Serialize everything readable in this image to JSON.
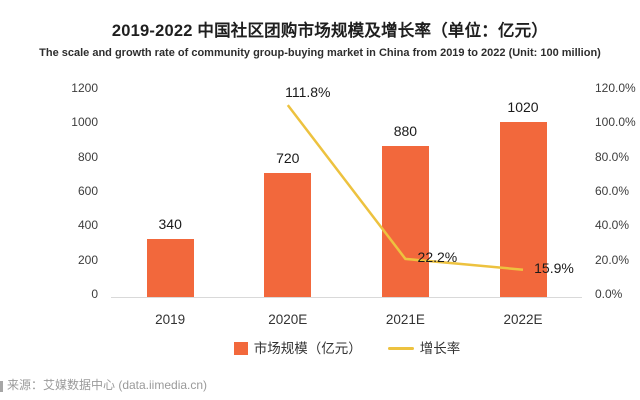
{
  "header": {
    "title": "2019-2022 中国社区团购市场规模及增长率（单位：亿元）",
    "subtitle": "The scale and growth rate of community group-buying market in China from 2019 to 2022 (Unit: 100 million)"
  },
  "legend": {
    "bar_label": "市场规模（亿元）",
    "line_label": "增长率"
  },
  "footer": {
    "source": "来源：艾媒数据中心 (data.iimedia.cn)"
  },
  "chart_data": {
    "type": "combo_bar_line",
    "title": "2019-2022 中国社区团购市场规模及增长率（单位：亿元）",
    "subtitle": "The scale and growth rate of community group-buying market in China from 2019 to 2022 (Unit: 100 million)",
    "categories": [
      "2019",
      "2020E",
      "2021E",
      "2022E"
    ],
    "series": [
      {
        "name": "市场规模（亿元）",
        "type": "bar",
        "axis": "left",
        "color": "#F2683C",
        "values": [
          340,
          720,
          880,
          1020
        ],
        "labels": [
          "340",
          "720",
          "880",
          "1020"
        ]
      },
      {
        "name": "增长率",
        "type": "line",
        "axis": "right",
        "color": "#EDC23F",
        "values": [
          null,
          111.8,
          22.2,
          15.9
        ],
        "labels": [
          null,
          "111.8%",
          "22.2%",
          "15.9%"
        ]
      }
    ],
    "left_axis": {
      "min": 0,
      "max": 1200,
      "ticks": [
        1200,
        1000,
        800,
        600,
        400,
        200,
        0
      ],
      "tick_labels": [
        "1200",
        "1000",
        "800",
        "600",
        "400",
        "200",
        "0"
      ]
    },
    "right_axis": {
      "min": 0,
      "max": 120,
      "ticks": [
        120,
        100,
        80,
        60,
        40,
        20,
        0
      ],
      "tick_labels": [
        "120.0%",
        "100.0%",
        "80.0%",
        "60.0%",
        "40.0%",
        "20.0%",
        "0.0%"
      ]
    },
    "grid": false,
    "legend_position": "bottom"
  }
}
